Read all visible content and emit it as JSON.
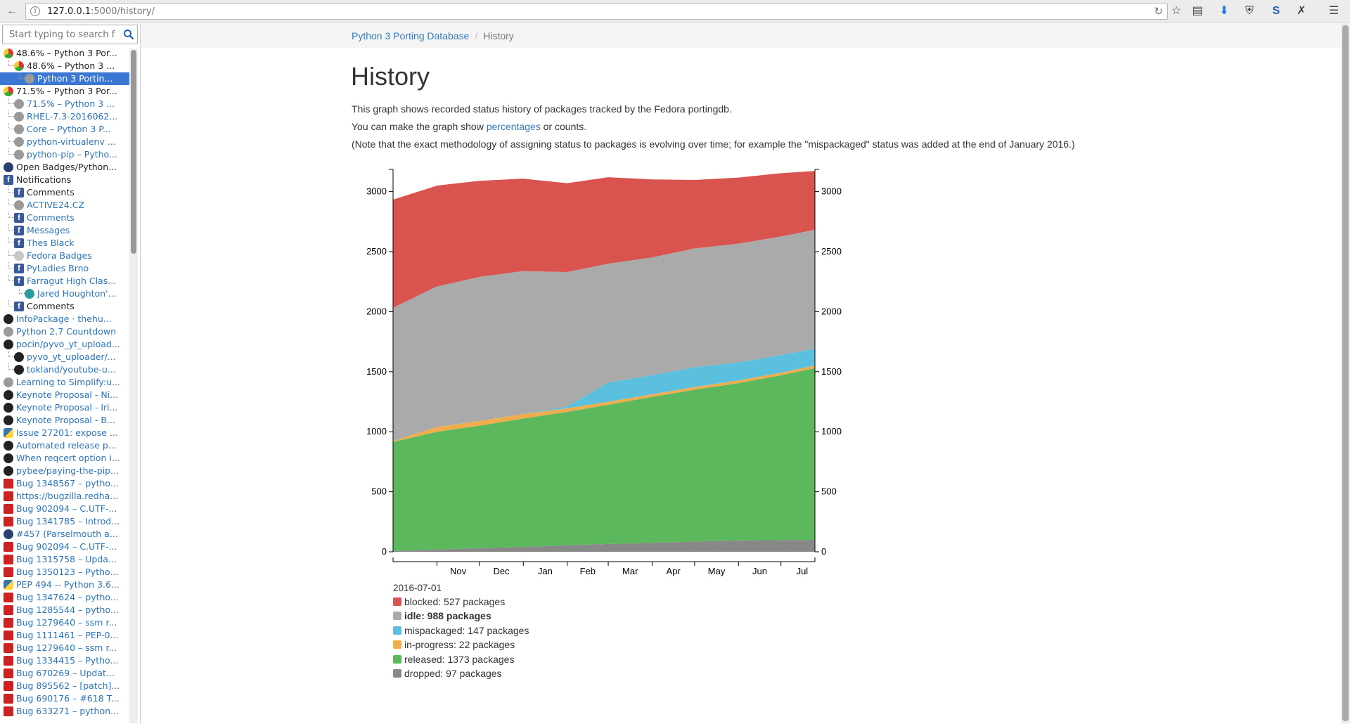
{
  "browser": {
    "url_host": "127.0.0.1",
    "url_path": ":5000/history/"
  },
  "sidebar": {
    "search_placeholder": "Start typing to search f...",
    "items": [
      {
        "label": "48.6% – Python 3 Por...",
        "icon": "chrome-icon",
        "indent": 0,
        "style": "visited"
      },
      {
        "label": "48.6% – Python 3 ...",
        "icon": "chrome-icon",
        "indent": 1,
        "style": "visited"
      },
      {
        "label": "Python 3 Portin...",
        "icon": "globe-icon",
        "indent": 2,
        "style": "selected"
      },
      {
        "label": "71.5% – Python 3 Por...",
        "icon": "chrome-icon",
        "indent": 0,
        "style": "visited"
      },
      {
        "label": "71.5% – Python 3 ...",
        "icon": "globe-icon",
        "indent": 1,
        "style": "link"
      },
      {
        "label": "RHEL-7.3-2016062...",
        "icon": "globe-icon",
        "indent": 1,
        "style": "link"
      },
      {
        "label": "Core – Python 3 P...",
        "icon": "globe-icon",
        "indent": 1,
        "style": "link"
      },
      {
        "label": "python-virtualenv ...",
        "icon": "globe-icon",
        "indent": 1,
        "style": "link"
      },
      {
        "label": "python-pip – Pytho...",
        "icon": "globe-icon",
        "indent": 1,
        "style": "link"
      },
      {
        "label": "Open Badges/Python...",
        "icon": "fedora-icon",
        "indent": 0,
        "style": "visited"
      },
      {
        "label": "Notifications",
        "icon": "facebook-icon",
        "indent": 0,
        "style": "visited"
      },
      {
        "label": "Comments",
        "icon": "facebook-icon",
        "indent": 1,
        "style": "visited"
      },
      {
        "label": "ACTIVE24.CZ",
        "icon": "globe-icon",
        "indent": 1,
        "style": "link"
      },
      {
        "label": "Comments",
        "icon": "facebook-icon",
        "indent": 1,
        "style": "link"
      },
      {
        "label": "Messages",
        "icon": "facebook-icon",
        "indent": 1,
        "style": "link"
      },
      {
        "label": "Thes Black",
        "icon": "facebook-icon",
        "indent": 1,
        "style": "link"
      },
      {
        "label": "Fedora Badges",
        "icon": "badge-icon",
        "indent": 1,
        "style": "link"
      },
      {
        "label": "PyLadies Brno",
        "icon": "facebook-icon",
        "indent": 1,
        "style": "link"
      },
      {
        "label": "Farragut High Clas...",
        "icon": "facebook-icon",
        "indent": 1,
        "style": "link"
      },
      {
        "label": "Jared Houghton'...",
        "icon": "teal-icon",
        "indent": 2,
        "style": "link"
      },
      {
        "label": "Comments",
        "icon": "facebook-icon",
        "indent": 1,
        "style": "visited"
      },
      {
        "label": "InfoPackage · thehu...",
        "icon": "github-icon",
        "indent": 0,
        "style": "link"
      },
      {
        "label": "Python 2.7 Countdown",
        "icon": "globe-icon",
        "indent": 0,
        "style": "link"
      },
      {
        "label": "pocin/pyvo_yt_upload...",
        "icon": "github-icon",
        "indent": 0,
        "style": "link"
      },
      {
        "label": "pyvo_yt_uploader/...",
        "icon": "github-icon",
        "indent": 1,
        "style": "link"
      },
      {
        "label": "tokland/youtube-u...",
        "icon": "github-icon",
        "indent": 1,
        "style": "link"
      },
      {
        "label": "Learning to Simplify:u...",
        "icon": "globe-icon",
        "indent": 0,
        "style": "link"
      },
      {
        "label": "Keynote Proposal - Ni...",
        "icon": "github-icon",
        "indent": 0,
        "style": "link"
      },
      {
        "label": "Keynote Proposal - Iri...",
        "icon": "github-icon",
        "indent": 0,
        "style": "link"
      },
      {
        "label": "Keynote Proposal - B...",
        "icon": "github-icon",
        "indent": 0,
        "style": "link"
      },
      {
        "label": "Issue 27201: expose ...",
        "icon": "python-icon",
        "indent": 0,
        "style": "link"
      },
      {
        "label": "Automated release p...",
        "icon": "github-icon",
        "indent": 0,
        "style": "link"
      },
      {
        "label": "When reqcert option i...",
        "icon": "github-icon",
        "indent": 0,
        "style": "link"
      },
      {
        "label": "pybee/paying-the-pip...",
        "icon": "github-icon",
        "indent": 0,
        "style": "link"
      },
      {
        "label": "Bug 1348567 – pytho...",
        "icon": "bugzilla-icon",
        "indent": 0,
        "style": "link"
      },
      {
        "label": "https://bugzilla.redha...",
        "icon": "bugzilla-icon",
        "indent": 0,
        "style": "link"
      },
      {
        "label": "Bug 902094 – C.UTF-...",
        "icon": "bugzilla-icon",
        "indent": 0,
        "style": "link"
      },
      {
        "label": "Bug 1341785 – Introd...",
        "icon": "bugzilla-icon",
        "indent": 0,
        "style": "link"
      },
      {
        "label": "#457 (Parselmouth a...",
        "icon": "fedora-icon",
        "indent": 0,
        "style": "link"
      },
      {
        "label": "Bug 902094 – C.UTF-...",
        "icon": "bugzilla-icon",
        "indent": 0,
        "style": "link"
      },
      {
        "label": "Bug 1315758 – Upda...",
        "icon": "bugzilla-icon",
        "indent": 0,
        "style": "link"
      },
      {
        "label": "Bug 1350123 – Pytho...",
        "icon": "bugzilla-icon",
        "indent": 0,
        "style": "link"
      },
      {
        "label": "PEP 494 -- Python 3.6...",
        "icon": "python-icon",
        "indent": 0,
        "style": "link"
      },
      {
        "label": "Bug 1347624 – pytho...",
        "icon": "bugzilla-icon",
        "indent": 0,
        "style": "link"
      },
      {
        "label": "Bug 1285544 – pytho...",
        "icon": "bugzilla-icon",
        "indent": 0,
        "style": "link"
      },
      {
        "label": "Bug 1279640 – ssm r...",
        "icon": "bugzilla-icon",
        "indent": 0,
        "style": "link"
      },
      {
        "label": "Bug 1111461 – PEP-0...",
        "icon": "bugzilla-icon",
        "indent": 0,
        "style": "link"
      },
      {
        "label": "Bug 1279640 – ssm r...",
        "icon": "bugzilla-icon",
        "indent": 0,
        "style": "link"
      },
      {
        "label": "Bug 1334415 – Pytho...",
        "icon": "bugzilla-icon",
        "indent": 0,
        "style": "link"
      },
      {
        "label": "Bug 670269 – Updat...",
        "icon": "bugzilla-icon",
        "indent": 0,
        "style": "link"
      },
      {
        "label": "Bug 895562 – [patch]...",
        "icon": "bugzilla-icon",
        "indent": 0,
        "style": "link"
      },
      {
        "label": "Bug 690176 – #618 T...",
        "icon": "bugzilla-icon",
        "indent": 0,
        "style": "link"
      },
      {
        "label": "Bug 633271 – python...",
        "icon": "bugzilla-icon",
        "indent": 0,
        "style": "link"
      }
    ]
  },
  "page": {
    "breadcrumb_home": "Python 3 Porting Database",
    "breadcrumb_current": "History",
    "title": "History",
    "intro": "This graph shows recorded status history of packages tracked by the Fedora portingdb.",
    "toggle_prefix": "You can make the graph show ",
    "toggle_link": "percentages",
    "toggle_suffix": " or counts.",
    "note": "(Note that the exact methodology of assigning status to packages is evolving over time; for example the \"mispackaged\" status was added at the end of January 2016.)"
  },
  "legend": {
    "date": "2016-07-01",
    "rows": [
      {
        "text": "blocked: 527 packages",
        "color": "#d9534f",
        "bold": false
      },
      {
        "text": "idle: 988 packages",
        "color": "#aaaaaa",
        "bold": true
      },
      {
        "text": "mispackaged: 147 packages",
        "color": "#5bc0de",
        "bold": false
      },
      {
        "text": "in-progress: 22 packages",
        "color": "#f0ad4e",
        "bold": false
      },
      {
        "text": "released: 1373 packages",
        "color": "#5cb85c",
        "bold": false
      },
      {
        "text": "dropped: 97 packages",
        "color": "#888888",
        "bold": false
      }
    ]
  },
  "chart_data": {
    "type": "area",
    "stacked": true,
    "x": [
      "2015-10-01",
      "2015-11-01",
      "2015-12-01",
      "2016-01-01",
      "2016-02-01",
      "2016-03-01",
      "2016-04-01",
      "2016-05-01",
      "2016-06-01",
      "2016-07-01",
      "2016-07-25"
    ],
    "x_tick_labels": [
      "Nov",
      "Dec",
      "Jan",
      "Feb",
      "Mar",
      "Apr",
      "May",
      "Jun",
      "Jul"
    ],
    "ylim": [
      0,
      3150
    ],
    "y_ticks": [
      0,
      500,
      1000,
      1500,
      2000,
      2500,
      3000
    ],
    "series": [
      {
        "name": "dropped",
        "color": "#888888",
        "values": [
          5,
          20,
          30,
          40,
          55,
          65,
          75,
          85,
          95,
          97,
          100
        ]
      },
      {
        "name": "released",
        "color": "#5cb85c",
        "values": [
          910,
          980,
          1020,
          1070,
          1110,
          1160,
          1215,
          1265,
          1310,
          1373,
          1430
        ]
      },
      {
        "name": "in-progress",
        "color": "#f0ad4e",
        "values": [
          8,
          40,
          40,
          38,
          30,
          25,
          22,
          22,
          22,
          22,
          22
        ]
      },
      {
        "name": "mispackaged",
        "color": "#5bc0de",
        "values": [
          0,
          0,
          0,
          0,
          15,
          160,
          160,
          165,
          150,
          147,
          140
        ]
      },
      {
        "name": "idle",
        "color": "#aaaaaa",
        "values": [
          1110,
          1170,
          1200,
          1190,
          1120,
          990,
          980,
          990,
          990,
          988,
          990
        ]
      },
      {
        "name": "blocked",
        "color": "#d9534f",
        "values": [
          900,
          840,
          800,
          770,
          740,
          720,
          650,
          570,
          550,
          527,
          490
        ]
      }
    ],
    "legend_position": "bottom-left"
  }
}
